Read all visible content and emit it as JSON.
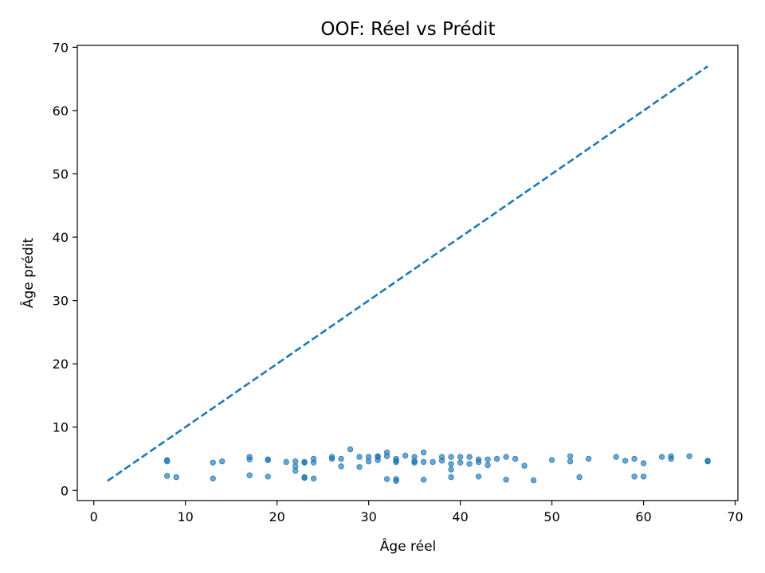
{
  "chart_data": {
    "type": "scatter",
    "title": "OOF: Réel vs Prédit",
    "xlabel": "Âge réel",
    "ylabel": "Âge prédit",
    "xlim": [
      -1.8,
      70.3
    ],
    "ylim": [
      -1.6,
      70.3
    ],
    "xticks": [
      0,
      10,
      20,
      30,
      40,
      50,
      60,
      70
    ],
    "yticks": [
      0,
      10,
      20,
      30,
      40,
      50,
      60,
      70
    ],
    "grid": false,
    "color": "#1f77b4",
    "reference_line": {
      "style": "dashed",
      "x": [
        1.5,
        67
      ],
      "y": [
        1.5,
        67
      ]
    },
    "points": [
      [
        8,
        4.8
      ],
      [
        8,
        4.6
      ],
      [
        8,
        2.3
      ],
      [
        9,
        2.1
      ],
      [
        13,
        4.4
      ],
      [
        13,
        1.9
      ],
      [
        14,
        4.6
      ],
      [
        17,
        5.3
      ],
      [
        17,
        4.9
      ],
      [
        17,
        2.4
      ],
      [
        19,
        4.8
      ],
      [
        19,
        4.9
      ],
      [
        19,
        2.2
      ],
      [
        21,
        4.5
      ],
      [
        22,
        4.6
      ],
      [
        22,
        3.8
      ],
      [
        22,
        3.1
      ],
      [
        23,
        4.4
      ],
      [
        23,
        4.5
      ],
      [
        23,
        2.1
      ],
      [
        23,
        2.0
      ],
      [
        24,
        5.0
      ],
      [
        24,
        4.4
      ],
      [
        24,
        1.9
      ],
      [
        26,
        5.3
      ],
      [
        26,
        5.0
      ],
      [
        27,
        5.0
      ],
      [
        27,
        3.8
      ],
      [
        28,
        6.5
      ],
      [
        29,
        5.3
      ],
      [
        29,
        3.7
      ],
      [
        30,
        5.3
      ],
      [
        30,
        4.6
      ],
      [
        31,
        5.3
      ],
      [
        31,
        4.8
      ],
      [
        31,
        5.4
      ],
      [
        32,
        6.0
      ],
      [
        32,
        5.4
      ],
      [
        32,
        1.8
      ],
      [
        33,
        5.0
      ],
      [
        33,
        4.5
      ],
      [
        33,
        4.7
      ],
      [
        33,
        1.8
      ],
      [
        33,
        1.5
      ],
      [
        34,
        5.5
      ],
      [
        35,
        5.3
      ],
      [
        35,
        4.6
      ],
      [
        35,
        4.4
      ],
      [
        36,
        6.0
      ],
      [
        36,
        4.5
      ],
      [
        36,
        1.7
      ],
      [
        37,
        4.5
      ],
      [
        38,
        5.3
      ],
      [
        38,
        4.7
      ],
      [
        39,
        5.3
      ],
      [
        39,
        4.2
      ],
      [
        39,
        3.3
      ],
      [
        39,
        2.1
      ],
      [
        40,
        5.3
      ],
      [
        40,
        4.4
      ],
      [
        41,
        5.3
      ],
      [
        41,
        4.2
      ],
      [
        42,
        4.9
      ],
      [
        42,
        4.5
      ],
      [
        42,
        2.2
      ],
      [
        43,
        4.9
      ],
      [
        43,
        4.0
      ],
      [
        44,
        5.0
      ],
      [
        45,
        5.3
      ],
      [
        45,
        1.7
      ],
      [
        46,
        5.0
      ],
      [
        47,
        3.9
      ],
      [
        48,
        1.6
      ],
      [
        50,
        4.8
      ],
      [
        52,
        5.4
      ],
      [
        52,
        4.6
      ],
      [
        53,
        2.1
      ],
      [
        54,
        5.0
      ],
      [
        57,
        5.3
      ],
      [
        58,
        4.7
      ],
      [
        59,
        5.0
      ],
      [
        59,
        2.2
      ],
      [
        60,
        4.3
      ],
      [
        60,
        2.2
      ],
      [
        62,
        5.3
      ],
      [
        63,
        5.4
      ],
      [
        63,
        5.0
      ],
      [
        65,
        5.4
      ],
      [
        67,
        4.7
      ],
      [
        67,
        4.6
      ]
    ]
  }
}
